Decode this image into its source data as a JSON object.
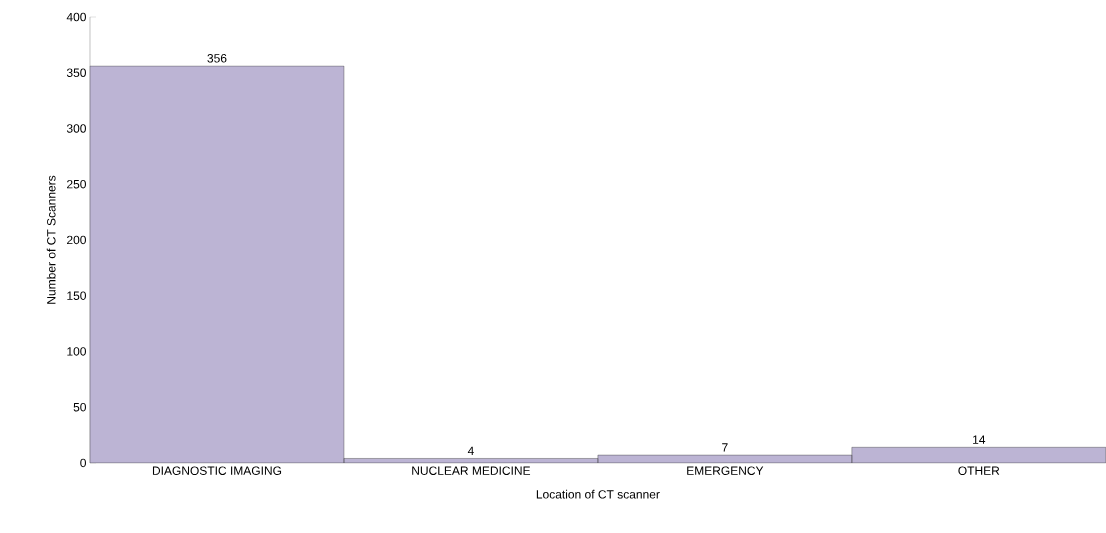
{
  "chart_data": {
    "type": "bar",
    "xlabel": "Location of CT scanner",
    "ylabel": "Number of CT Scanners",
    "categories": [
      "DIAGNOSTIC IMAGING",
      "NUCLEAR MEDICINE",
      "EMERGENCY",
      "OTHER"
    ],
    "values": [
      356,
      4,
      7,
      14
    ],
    "color": "#bcb4d4",
    "data_labels": true,
    "ylim": [
      0,
      400
    ],
    "yticks": [
      0,
      50,
      100,
      150,
      200,
      250,
      300,
      350,
      400
    ]
  }
}
